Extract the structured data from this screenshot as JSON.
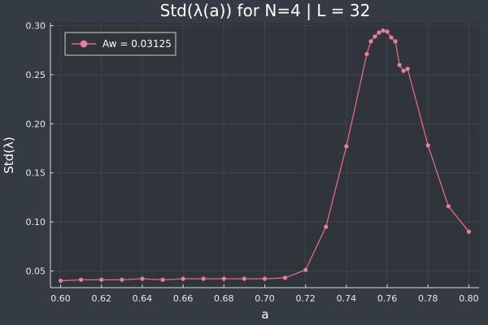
{
  "chart_data": {
    "type": "line",
    "title": "Std(λ(a)) for N=4 | L = 32",
    "xlabel": "a",
    "ylabel": "Std(λ)",
    "xlim": [
      0.595,
      0.805
    ],
    "ylim": [
      0.033,
      0.303
    ],
    "x_ticks": [
      0.6,
      0.62,
      0.64,
      0.66,
      0.68,
      0.7,
      0.72,
      0.74,
      0.76,
      0.78,
      0.8
    ],
    "x_tick_labels": [
      "0.60",
      "0.62",
      "0.64",
      "0.66",
      "0.68",
      "0.70",
      "0.72",
      "0.74",
      "0.76",
      "0.78",
      "0.80"
    ],
    "y_ticks": [
      0.05,
      0.1,
      0.15,
      0.2,
      0.25,
      0.3
    ],
    "y_tick_labels": [
      "0.05",
      "0.10",
      "0.15",
      "0.20",
      "0.25",
      "0.30"
    ],
    "grid": true,
    "legend_position": "top-left",
    "colors": {
      "background": "#353b45",
      "plot_area": "#30343b",
      "series": "#e26a84",
      "marker": "#d98a96"
    },
    "series": [
      {
        "name": "Aw = 0.03125",
        "x": [
          0.6,
          0.61,
          0.62,
          0.63,
          0.64,
          0.65,
          0.66,
          0.67,
          0.68,
          0.69,
          0.7,
          0.71,
          0.72,
          0.73,
          0.74,
          0.75,
          0.752,
          0.754,
          0.756,
          0.758,
          0.76,
          0.762,
          0.764,
          0.766,
          0.768,
          0.77,
          0.78,
          0.79,
          0.8
        ],
        "y": [
          0.04,
          0.041,
          0.041,
          0.041,
          0.042,
          0.041,
          0.042,
          0.042,
          0.042,
          0.042,
          0.042,
          0.043,
          0.051,
          0.095,
          0.177,
          0.271,
          0.284,
          0.289,
          0.293,
          0.295,
          0.294,
          0.288,
          0.284,
          0.26,
          0.254,
          0.256,
          0.178,
          0.116,
          0.09
        ]
      }
    ]
  }
}
